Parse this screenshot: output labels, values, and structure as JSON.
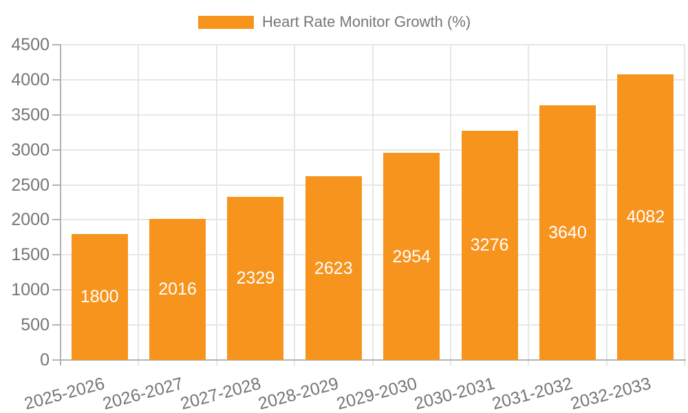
{
  "legend": {
    "label": "Heart Rate Monitor Growth (%)"
  },
  "chart_data": {
    "type": "bar",
    "title": "Heart Rate Monitor Growth (%)",
    "categories": [
      "2025-2026",
      "2026-2027",
      "2027-2028",
      "2028-2029",
      "2029-2030",
      "2030-2031",
      "2031-2032",
      "2032-2033"
    ],
    "values": [
      1800,
      2016,
      2329,
      2623,
      2954,
      3276,
      3640,
      4082
    ],
    "series_name": "Heart Rate Monitor Growth (%)",
    "xlabel": "",
    "ylabel": "",
    "ylim": [
      0,
      4500
    ],
    "ytick_step": 500,
    "ytick_labels": [
      "0",
      "500",
      "1000",
      "1500",
      "2000",
      "2500",
      "3000",
      "3500",
      "4000",
      "4500"
    ],
    "grid": true,
    "legend_position": "top",
    "x_label_rotation_deg": -15,
    "colors": {
      "bar": "#F7941E",
      "value_label": "#FFFFFF",
      "axis_text": "#757575",
      "gridline": "#E6E6E6",
      "axis_line": "#B3B3B3"
    }
  }
}
